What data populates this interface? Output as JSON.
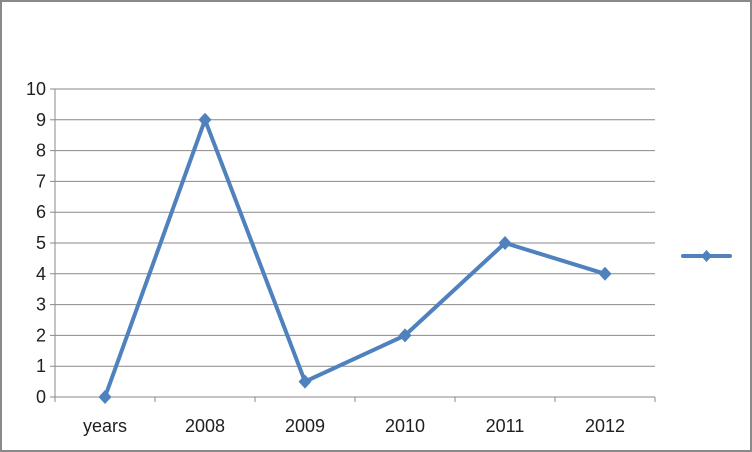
{
  "chart_data": {
    "type": "line",
    "title": "",
    "xlabel": "",
    "ylabel": "",
    "categories": [
      "years",
      "2008",
      "2009",
      "2010",
      "2011",
      "2012"
    ],
    "series": [
      {
        "name": "",
        "values": [
          0,
          9,
          0.5,
          2,
          5,
          4
        ]
      }
    ],
    "ylim": [
      0,
      10
    ],
    "ytick_step": 1,
    "ytick_labels": [
      "0",
      "1",
      "2",
      "3",
      "4",
      "5",
      "6",
      "7",
      "8",
      "9",
      "10"
    ],
    "grid": true,
    "marker": "diamond",
    "legend": {
      "position": "right",
      "has_text": false,
      "entries": [
        ""
      ]
    },
    "colors": {
      "series": "#4F81BD",
      "gridline": "#898989",
      "axis": "#898989",
      "tick": "#898989",
      "text": "#1f1f1f",
      "frame_border": "#898989",
      "background": "#ffffff"
    },
    "tick_font_size": 18
  }
}
